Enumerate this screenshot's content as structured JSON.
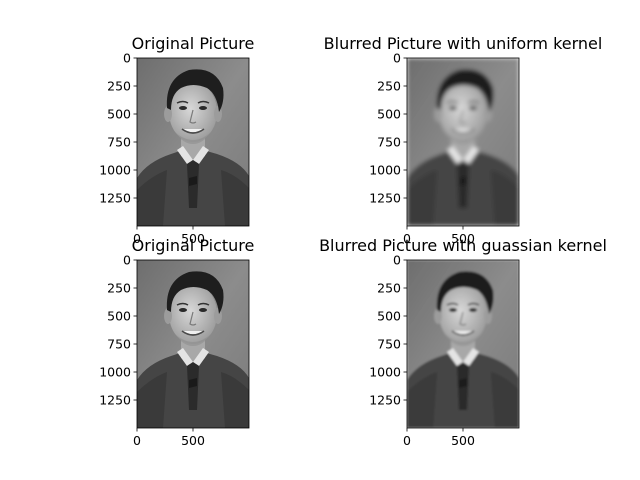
{
  "figure": {
    "background": "#ffffff",
    "colormap": "gray"
  },
  "chart_data": [
    {
      "type": "image",
      "title": "Original Picture",
      "subject": "grayscale portrait of a smiling man in a dark sweater and collared shirt",
      "blur": "none",
      "xlim": [
        0,
        1000
      ],
      "ylim": [
        1500,
        0
      ],
      "xticks": [
        0,
        500
      ],
      "yticks": [
        0,
        250,
        500,
        750,
        1000,
        1250
      ]
    },
    {
      "type": "image",
      "title": "Blurred Picture with uniform kernel",
      "subject": "grayscale portrait of a smiling man in a dark sweater and collared shirt",
      "blur": "uniform",
      "xlim": [
        0,
        1000
      ],
      "ylim": [
        1500,
        0
      ],
      "xticks": [
        0,
        500
      ],
      "yticks": [
        0,
        250,
        500,
        750,
        1000,
        1250
      ]
    },
    {
      "type": "image",
      "title": "Original Picture",
      "subject": "grayscale portrait of a smiling man in a dark sweater and collared shirt",
      "blur": "none",
      "xlim": [
        0,
        1000
      ],
      "ylim": [
        1500,
        0
      ],
      "xticks": [
        0,
        500
      ],
      "yticks": [
        0,
        250,
        500,
        750,
        1000,
        1250
      ]
    },
    {
      "type": "image",
      "title": "Blurred Picture with guassian kernel",
      "subject": "grayscale portrait of a smiling man in a dark sweater and collared shirt",
      "blur": "gaussian",
      "xlim": [
        0,
        1000
      ],
      "ylim": [
        1500,
        0
      ],
      "xticks": [
        0,
        500
      ],
      "yticks": [
        0,
        250,
        500,
        750,
        1000,
        1250
      ]
    }
  ]
}
